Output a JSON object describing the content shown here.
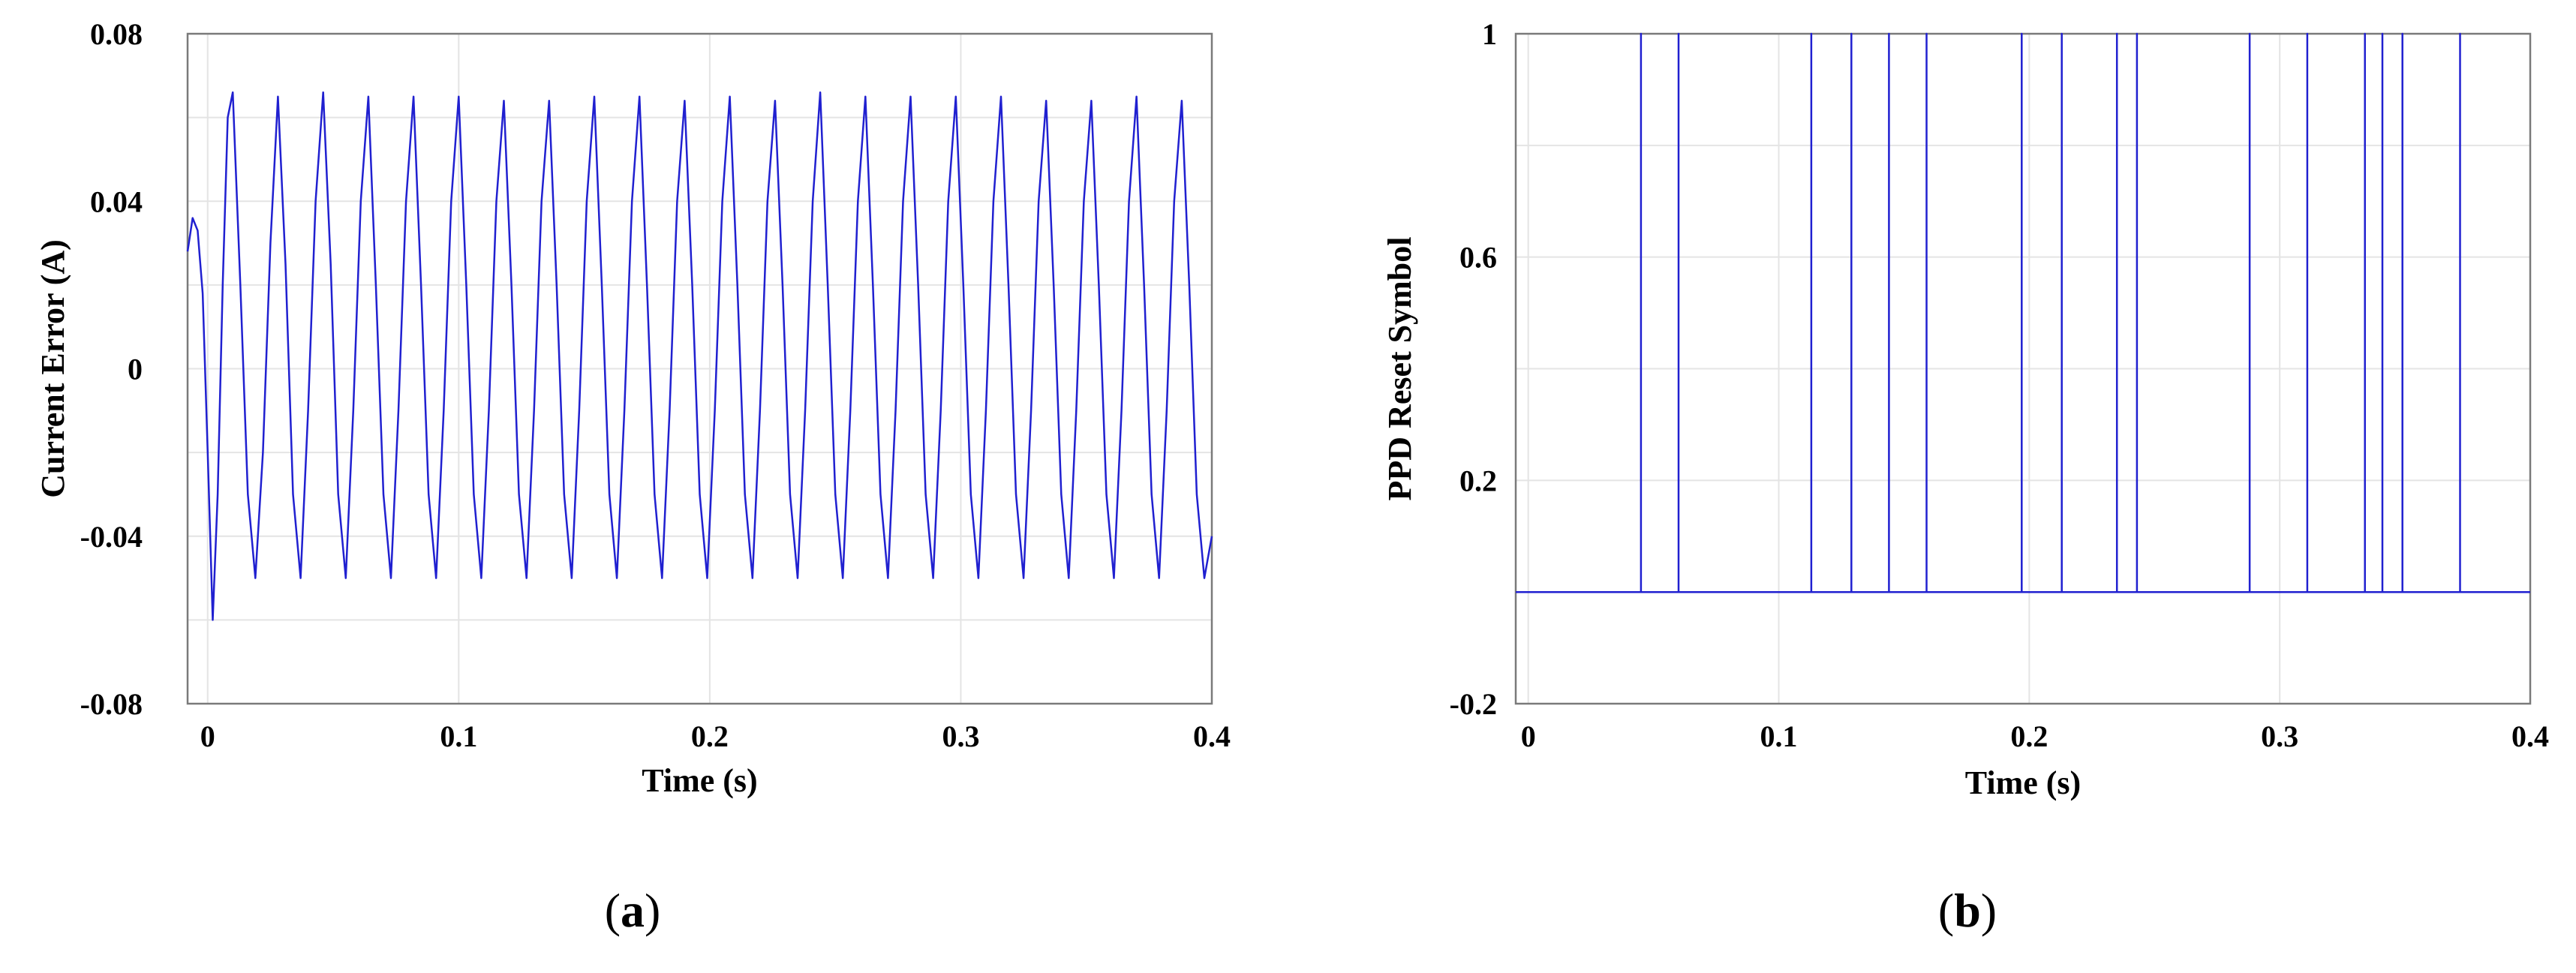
{
  "chart_data": [
    {
      "type": "line",
      "caption_letter": "a",
      "xlabel": "Time  (s)",
      "ylabel": "Current Error (A)",
      "xlim": [
        -0.008,
        0.4
      ],
      "ylim": [
        -0.08,
        0.08
      ],
      "xticks": [
        0,
        0.1,
        0.2,
        0.3,
        0.4
      ],
      "xtick_labels": [
        "0",
        "0.1",
        "0.2",
        "0.3",
        "0.4"
      ],
      "yticks": [
        -0.08,
        -0.04,
        0,
        0.04,
        0.08
      ],
      "ytick_labels": [
        "-0.08",
        "-0.04",
        "0",
        "0.04",
        "0.08"
      ],
      "grid": true,
      "line_color": "#2020d0",
      "series": [
        {
          "points": [
            [
              -0.008,
              0.028
            ],
            [
              -0.006,
              0.036
            ],
            [
              -0.004,
              0.033
            ],
            [
              -0.002,
              0.018
            ],
            [
              0.0,
              -0.02
            ],
            [
              0.002,
              -0.06
            ],
            [
              0.004,
              -0.03
            ],
            [
              0.006,
              0.02
            ],
            [
              0.008,
              0.06
            ],
            [
              0.01,
              0.066
            ],
            [
              0.013,
              0.02
            ],
            [
              0.016,
              -0.03
            ],
            [
              0.019,
              -0.05
            ],
            [
              0.022,
              -0.02
            ],
            [
              0.025,
              0.03
            ],
            [
              0.028,
              0.065
            ],
            [
              0.031,
              0.025
            ],
            [
              0.034,
              -0.03
            ],
            [
              0.037,
              -0.05
            ],
            [
              0.04,
              -0.01
            ],
            [
              0.043,
              0.04
            ],
            [
              0.046,
              0.066
            ],
            [
              0.049,
              0.025
            ],
            [
              0.052,
              -0.03
            ],
            [
              0.055,
              -0.05
            ],
            [
              0.058,
              -0.01
            ],
            [
              0.061,
              0.04
            ],
            [
              0.064,
              0.065
            ],
            [
              0.067,
              0.02
            ],
            [
              0.07,
              -0.03
            ],
            [
              0.073,
              -0.05
            ],
            [
              0.076,
              -0.01
            ],
            [
              0.079,
              0.04
            ],
            [
              0.082,
              0.065
            ],
            [
              0.085,
              0.02
            ],
            [
              0.088,
              -0.03
            ],
            [
              0.091,
              -0.05
            ],
            [
              0.094,
              -0.01
            ],
            [
              0.097,
              0.04
            ],
            [
              0.1,
              0.065
            ],
            [
              0.103,
              0.02
            ],
            [
              0.106,
              -0.03
            ],
            [
              0.109,
              -0.05
            ],
            [
              0.112,
              -0.01
            ],
            [
              0.115,
              0.04
            ],
            [
              0.118,
              0.064
            ],
            [
              0.121,
              0.02
            ],
            [
              0.124,
              -0.03
            ],
            [
              0.127,
              -0.05
            ],
            [
              0.13,
              -0.01
            ],
            [
              0.133,
              0.04
            ],
            [
              0.136,
              0.064
            ],
            [
              0.139,
              0.02
            ],
            [
              0.142,
              -0.03
            ],
            [
              0.145,
              -0.05
            ],
            [
              0.148,
              -0.01
            ],
            [
              0.151,
              0.04
            ],
            [
              0.154,
              0.065
            ],
            [
              0.157,
              0.02
            ],
            [
              0.16,
              -0.03
            ],
            [
              0.163,
              -0.05
            ],
            [
              0.166,
              -0.01
            ],
            [
              0.169,
              0.04
            ],
            [
              0.172,
              0.065
            ],
            [
              0.175,
              0.02
            ],
            [
              0.178,
              -0.03
            ],
            [
              0.181,
              -0.05
            ],
            [
              0.184,
              -0.01
            ],
            [
              0.187,
              0.04
            ],
            [
              0.19,
              0.064
            ],
            [
              0.193,
              0.02
            ],
            [
              0.196,
              -0.03
            ],
            [
              0.199,
              -0.05
            ],
            [
              0.202,
              -0.01
            ],
            [
              0.205,
              0.04
            ],
            [
              0.208,
              0.065
            ],
            [
              0.211,
              0.02
            ],
            [
              0.214,
              -0.03
            ],
            [
              0.217,
              -0.05
            ],
            [
              0.22,
              -0.01
            ],
            [
              0.223,
              0.04
            ],
            [
              0.226,
              0.064
            ],
            [
              0.229,
              0.02
            ],
            [
              0.232,
              -0.03
            ],
            [
              0.235,
              -0.05
            ],
            [
              0.238,
              -0.01
            ],
            [
              0.241,
              0.04
            ],
            [
              0.244,
              0.066
            ],
            [
              0.247,
              0.02
            ],
            [
              0.25,
              -0.03
            ],
            [
              0.253,
              -0.05
            ],
            [
              0.256,
              -0.01
            ],
            [
              0.259,
              0.04
            ],
            [
              0.262,
              0.065
            ],
            [
              0.265,
              0.02
            ],
            [
              0.268,
              -0.03
            ],
            [
              0.271,
              -0.05
            ],
            [
              0.274,
              -0.01
            ],
            [
              0.277,
              0.04
            ],
            [
              0.28,
              0.065
            ],
            [
              0.283,
              0.02
            ],
            [
              0.286,
              -0.03
            ],
            [
              0.289,
              -0.05
            ],
            [
              0.292,
              -0.01
            ],
            [
              0.295,
              0.04
            ],
            [
              0.298,
              0.065
            ],
            [
              0.301,
              0.02
            ],
            [
              0.304,
              -0.03
            ],
            [
              0.307,
              -0.05
            ],
            [
              0.31,
              -0.01
            ],
            [
              0.313,
              0.04
            ],
            [
              0.316,
              0.065
            ],
            [
              0.319,
              0.02
            ],
            [
              0.322,
              -0.03
            ],
            [
              0.325,
              -0.05
            ],
            [
              0.328,
              -0.01
            ],
            [
              0.331,
              0.04
            ],
            [
              0.334,
              0.064
            ],
            [
              0.337,
              0.02
            ],
            [
              0.34,
              -0.03
            ],
            [
              0.343,
              -0.05
            ],
            [
              0.346,
              -0.01
            ],
            [
              0.349,
              0.04
            ],
            [
              0.352,
              0.064
            ],
            [
              0.355,
              0.02
            ],
            [
              0.358,
              -0.03
            ],
            [
              0.361,
              -0.05
            ],
            [
              0.364,
              -0.01
            ],
            [
              0.367,
              0.04
            ],
            [
              0.37,
              0.065
            ],
            [
              0.373,
              0.02
            ],
            [
              0.376,
              -0.03
            ],
            [
              0.379,
              -0.05
            ],
            [
              0.382,
              -0.01
            ],
            [
              0.385,
              0.04
            ],
            [
              0.388,
              0.064
            ],
            [
              0.391,
              0.02
            ],
            [
              0.394,
              -0.03
            ],
            [
              0.397,
              -0.05
            ],
            [
              0.4,
              -0.04
            ]
          ]
        }
      ]
    },
    {
      "type": "line",
      "caption_letter": "b",
      "xlabel": "Time  (s)",
      "ylabel": "PPD Reset Symbol",
      "xlim": [
        -0.005,
        0.4
      ],
      "ylim": [
        -0.2,
        1
      ],
      "xticks": [
        0,
        0.1,
        0.2,
        0.3,
        0.4
      ],
      "xtick_labels": [
        "0",
        "0.1",
        "0.2",
        "0.3",
        "0.4"
      ],
      "yticks": [
        -0.2,
        0.2,
        0.6,
        1
      ],
      "ytick_labels": [
        "-0.2",
        "0.2",
        "0.6",
        "1"
      ],
      "grid": true,
      "line_color": "#2020d0",
      "series": [
        {
          "points": [
            [
              -0.005,
              0
            ],
            [
              0.045,
              0
            ],
            [
              0.045,
              1
            ],
            [
              0.045,
              0
            ],
            [
              0.06,
              0
            ],
            [
              0.06,
              1
            ],
            [
              0.06,
              0
            ],
            [
              0.113,
              0
            ],
            [
              0.113,
              1
            ],
            [
              0.113,
              0
            ],
            [
              0.129,
              0
            ],
            [
              0.129,
              1
            ],
            [
              0.129,
              0
            ],
            [
              0.144,
              0
            ],
            [
              0.144,
              1
            ],
            [
              0.144,
              0
            ],
            [
              0.159,
              0
            ],
            [
              0.159,
              1
            ],
            [
              0.159,
              0
            ],
            [
              0.197,
              0
            ],
            [
              0.197,
              1
            ],
            [
              0.197,
              0
            ],
            [
              0.213,
              0
            ],
            [
              0.213,
              1
            ],
            [
              0.213,
              0
            ],
            [
              0.235,
              0
            ],
            [
              0.235,
              1
            ],
            [
              0.235,
              0
            ],
            [
              0.243,
              0
            ],
            [
              0.243,
              1
            ],
            [
              0.243,
              0
            ],
            [
              0.288,
              0
            ],
            [
              0.288,
              1
            ],
            [
              0.288,
              0
            ],
            [
              0.311,
              0
            ],
            [
              0.311,
              1
            ],
            [
              0.311,
              0
            ],
            [
              0.334,
              0
            ],
            [
              0.334,
              1
            ],
            [
              0.334,
              0
            ],
            [
              0.341,
              0
            ],
            [
              0.341,
              1
            ],
            [
              0.341,
              0
            ],
            [
              0.349,
              0
            ],
            [
              0.349,
              1
            ],
            [
              0.349,
              0
            ],
            [
              0.372,
              0
            ],
            [
              0.372,
              1
            ],
            [
              0.372,
              0
            ],
            [
              0.4,
              0
            ]
          ]
        }
      ]
    }
  ]
}
